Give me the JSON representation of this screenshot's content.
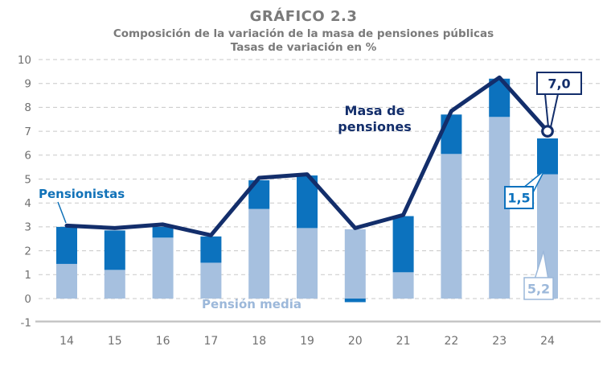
{
  "header": {
    "title": "GRÁFICO 2.3",
    "subtitle_line1": "Composición de la variación de la masa de pensiones públicas",
    "subtitle_line2": "Tasas de variación en %"
  },
  "chart_data": {
    "type": "bar",
    "subtype": "stacked-column-with-line",
    "title": "Composición de la variación de la masa de pensiones públicas",
    "units": "Tasas de variación en %",
    "categories": [
      "14",
      "15",
      "16",
      "17",
      "18",
      "19",
      "20",
      "21",
      "22",
      "23",
      "24"
    ],
    "series": [
      {
        "name": "Pensión media",
        "type": "bar",
        "stack": "total",
        "color": "#A6C0DF",
        "values": [
          1.45,
          1.2,
          2.55,
          1.5,
          3.75,
          2.95,
          2.9,
          1.1,
          6.05,
          7.6,
          5.2
        ]
      },
      {
        "name": "Pensionistas",
        "type": "bar",
        "stack": "total",
        "color": "#0C72BE",
        "values": [
          1.55,
          1.65,
          0.45,
          1.1,
          1.2,
          2.2,
          -0.15,
          2.35,
          1.65,
          1.6,
          1.5
        ]
      },
      {
        "name": "Masa de pensiones",
        "type": "line",
        "color": "#132E6B",
        "end_marker": "open-circle",
        "values": [
          3.05,
          2.95,
          3.1,
          2.65,
          5.05,
          5.2,
          2.95,
          3.5,
          7.85,
          9.25,
          7.0
        ]
      }
    ],
    "ylim": [
      -1,
      10
    ],
    "yticks": [
      -1,
      0,
      1,
      2,
      3,
      4,
      5,
      6,
      7,
      8,
      9,
      10
    ],
    "grid": "horizontal-dashed",
    "legend_position": "inline-annotations",
    "annotations": {
      "series_labels": [
        {
          "text": "Pensionistas",
          "series": "Pensionistas",
          "color": "#1172B8",
          "has_leader_line": true
        },
        {
          "text": "Pensión media",
          "series": "Pensión media",
          "color": "#9CB8DA",
          "has_leader_line": false
        },
        {
          "text_lines": [
            "Masa de",
            "pensiones"
          ],
          "series": "Masa de pensiones",
          "color": "#132E6B",
          "has_leader_line": false
        }
      ],
      "callouts": [
        {
          "text": "7,0",
          "value": 7.0,
          "category": "24",
          "series": "Masa de pensiones",
          "color": "#132E6B"
        },
        {
          "text": "1,5",
          "value": 1.5,
          "category": "24",
          "series": "Pensionistas",
          "color": "#0C72BE"
        },
        {
          "text": "5,2",
          "value": 5.2,
          "category": "24",
          "series": "Pensión media",
          "color": "#9CB8DA"
        }
      ]
    }
  },
  "colors": {
    "background": "#FFFFFF",
    "title_gray": "#7A7A7A",
    "axis_label_gray": "#707070",
    "gridline": "#C8C8C8",
    "axis_line": "#C0C0C0",
    "bar_light_blue": "#A6C0DF",
    "bar_medium_blue": "#0C72BE",
    "line_navy": "#132E6B"
  }
}
